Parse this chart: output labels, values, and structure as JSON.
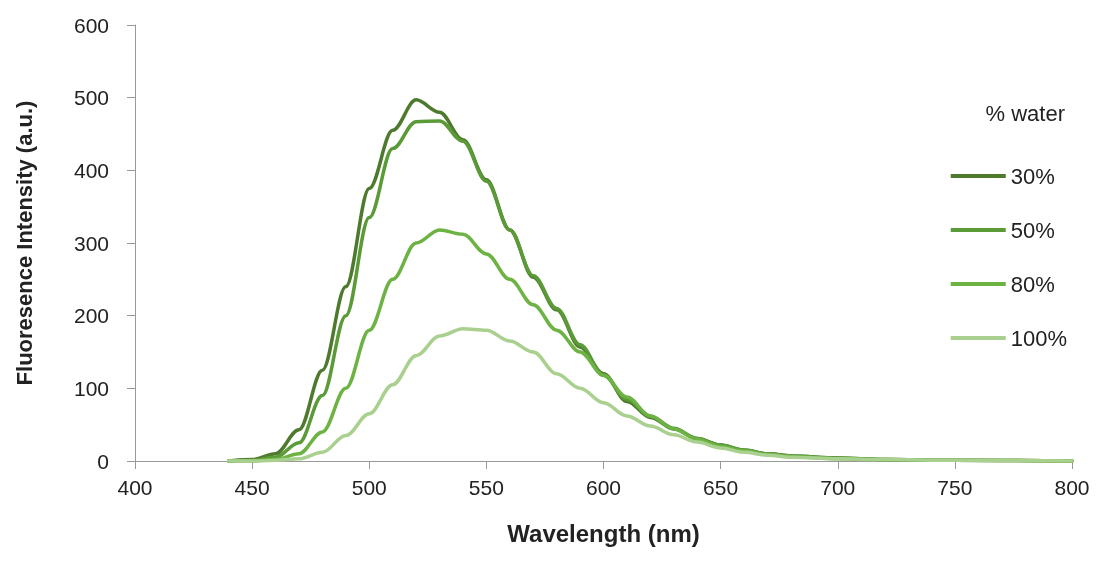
{
  "chart_data": {
    "type": "line",
    "xlabel": "Wavelength (nm)",
    "ylabel": "Fluoresence Intensity (a.u.)",
    "legend_title": "% water",
    "x": [
      440,
      450,
      460,
      470,
      480,
      490,
      500,
      510,
      520,
      530,
      540,
      550,
      560,
      570,
      580,
      590,
      600,
      610,
      620,
      630,
      640,
      650,
      660,
      670,
      680,
      700,
      720,
      750,
      800
    ],
    "series": [
      {
        "name": "30%",
        "color": "#4e7a2e",
        "values": [
          0,
          2,
          10,
          43,
          125,
          240,
          375,
          455,
          497,
          480,
          442,
          387,
          318,
          253,
          208,
          157,
          120,
          82,
          60,
          44,
          31,
          22,
          15,
          10,
          7,
          4,
          2,
          1,
          0
        ]
      },
      {
        "name": "50%",
        "color": "#5a9a37",
        "values": [
          0,
          1,
          5,
          25,
          90,
          200,
          335,
          430,
          467,
          468,
          440,
          385,
          318,
          255,
          210,
          160,
          118,
          85,
          62,
          45,
          31,
          22,
          15,
          10,
          7,
          4,
          2,
          1,
          0
        ]
      },
      {
        "name": "80%",
        "color": "#6db344",
        "values": [
          0,
          0,
          2,
          10,
          40,
          100,
          180,
          250,
          300,
          318,
          312,
          285,
          250,
          215,
          180,
          150,
          118,
          88,
          62,
          44,
          30,
          20,
          14,
          9,
          6,
          3,
          2,
          1,
          0
        ]
      },
      {
        "name": "100%",
        "color": "#a9d08e",
        "values": [
          0,
          0,
          1,
          3,
          12,
          35,
          65,
          105,
          145,
          172,
          182,
          180,
          165,
          150,
          120,
          100,
          80,
          62,
          48,
          36,
          26,
          18,
          12,
          8,
          5,
          3,
          2,
          1,
          0
        ]
      }
    ],
    "xlim": [
      400,
      800
    ],
    "xticks": [
      400,
      450,
      500,
      550,
      600,
      650,
      700,
      750,
      800
    ],
    "ylim": [
      0,
      600
    ],
    "yticks": [
      0,
      100,
      200,
      300,
      400,
      500,
      600
    ],
    "grid": false,
    "legend": "right",
    "marker": "none",
    "line_style": "solid"
  }
}
